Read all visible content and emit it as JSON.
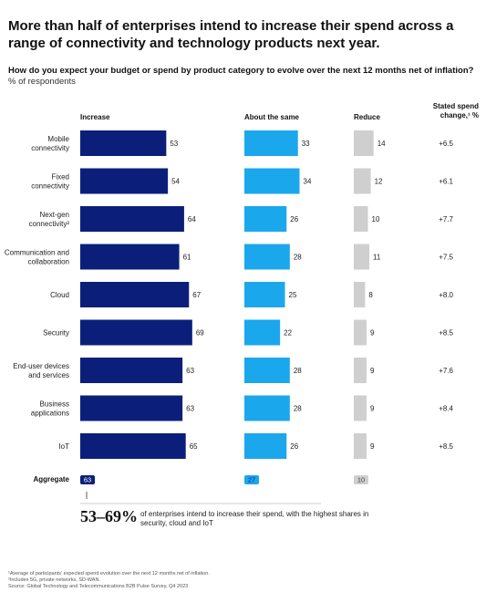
{
  "title": "More than half of enterprises intend to increase their spend across a range of connectivity and technology products next year.",
  "question": {
    "text": "How do you expect your budget or spend by product category to evolve over the next 12 months net of inflation?",
    "unit": "% of respondents"
  },
  "chart_data": {
    "type": "bar",
    "orientation": "horizontal",
    "columns": [
      "Increase",
      "About the same",
      "Reduce",
      "Stated spend change,¹ %"
    ],
    "categories": [
      "Mobile connectivity",
      "Fixed connectivity",
      "Next-gen connectivity²",
      "Communication and collaboration",
      "Cloud",
      "Security",
      "End-user devices and services",
      "Business applications",
      "IoT"
    ],
    "series": [
      {
        "name": "Increase",
        "color": "#0b1f7a",
        "values": [
          53,
          54,
          64,
          61,
          67,
          69,
          63,
          63,
          65
        ]
      },
      {
        "name": "About the same",
        "color": "#1ba7ec",
        "values": [
          33,
          34,
          26,
          28,
          25,
          22,
          28,
          28,
          26
        ]
      },
      {
        "name": "Reduce",
        "color": "#cfcfcf",
        "values": [
          14,
          12,
          10,
          11,
          8,
          9,
          9,
          9,
          9
        ]
      }
    ],
    "stated_spend_change": [
      "+6.5",
      "+6.1",
      "+7.7",
      "+7.5",
      "+8.0",
      "+8.5",
      "+7.6",
      "+8.4",
      "+8.5"
    ],
    "aggregate": {
      "label": "Aggregate",
      "increase": 63,
      "about_the_same": 27,
      "reduce": 10
    }
  },
  "callout": {
    "number": "53–69%",
    "text": "of enterprises intend to increase their spend, with the highest shares in security, cloud and IoT"
  },
  "footnotes": [
    "¹Average of participants' expected spend evolution over the next 12 months net of inflation.",
    "²Includes 5G, private networks, SD-WAN.",
    "Source: Global Technology and Telecommunications B2B Pulse Survey, Q4 2023"
  ]
}
